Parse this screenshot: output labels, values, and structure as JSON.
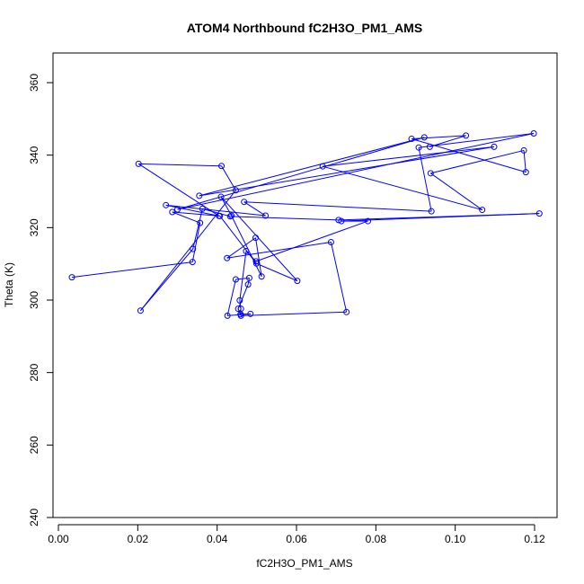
{
  "chart_data": {
    "type": "line",
    "title": "ATOM4 Northbound fC2H3O_PM1_AMS",
    "xlabel": "fC2H3O_PM1_AMS",
    "ylabel": "Theta (K)",
    "xlim": [
      0.0,
      0.125
    ],
    "ylim": [
      240,
      368
    ],
    "x_ticks": [
      0.0,
      0.02,
      0.04,
      0.06,
      0.08,
      0.1,
      0.12
    ],
    "x_tick_labels": [
      "0.00",
      "0.02",
      "0.04",
      "0.06",
      "0.08",
      "0.10",
      "0.12"
    ],
    "y_ticks": [
      240,
      260,
      280,
      300,
      320,
      340,
      360
    ],
    "y_tick_labels": [
      "240",
      "260",
      "280",
      "300",
      "320",
      "340",
      "360"
    ],
    "grid": false,
    "series_color": "#0000ff",
    "marker": "open-circle",
    "x": [
      0.0034,
      0.0338,
      0.0357,
      0.0287,
      0.0407,
      0.0499,
      0.0602,
      0.041,
      0.0436,
      0.0512,
      0.0497,
      0.0425,
      0.0687,
      0.0726,
      0.046,
      0.0453,
      0.0478,
      0.0481,
      0.0447,
      0.0426,
      0.0484,
      0.0459,
      0.046,
      0.0457,
      0.0473,
      0.0498,
      0.078,
      0.0713,
      0.1212,
      0.0706,
      0.0433,
      0.0363,
      0.0339,
      0.0207,
      0.0447,
      0.0411,
      0.0202,
      0.0405,
      0.0271,
      0.0522,
      0.0468,
      0.094,
      0.0908,
      0.1198,
      0.03,
      0.0922,
      0.0355,
      0.1098,
      0.0666,
      0.1068,
      0.0938,
      0.1173,
      0.1178,
      0.089,
      0.1027,
      0.0936
    ],
    "y": [
      306.3,
      310.5,
      321.3,
      324.3,
      323.2,
      310.1,
      305.3,
      328.5,
      323.3,
      306.5,
      317.2,
      311.6,
      316.0,
      296.7,
      295.7,
      297.6,
      304.3,
      306.1,
      305.7,
      295.7,
      296.2,
      296.1,
      297.6,
      299.9,
      313.5,
      310.7,
      321.8,
      321.8,
      323.9,
      322.1,
      323.1,
      325.2,
      314.1,
      297.1,
      330.3,
      337.0,
      337.6,
      323.2,
      326.2,
      323.3,
      327.1,
      324.5,
      342.1,
      346.0,
      325.0,
      344.9,
      328.8,
      342.3,
      336.9,
      324.9,
      335.0,
      341.3,
      335.3,
      344.5,
      345.4,
      342.3
    ]
  }
}
